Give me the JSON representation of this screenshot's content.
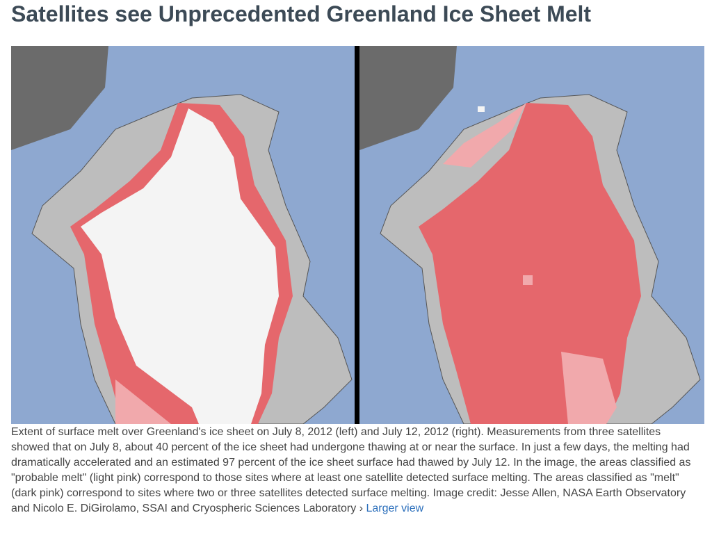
{
  "header": {
    "title": "Satellites see Unprecedented Greenland Ice Sheet Melt"
  },
  "caption": {
    "text": "Extent of surface melt over Greenland's ice sheet on July 8, 2012 (left) and July 12, 2012 (right). Measurements from three satellites showed that on July 8, about 40 percent of the ice sheet had undergone thawing at or near the surface. In just a few days, the melting had dramatically accelerated and an estimated 97 percent of the ice sheet surface had thawed by July 12. In the image, the areas classified as \"probable melt\" (light pink) correspond to those sites where at least one satellite detected surface melting. The areas classified as \"melt\" (dark pink) correspond to sites where two or three satellites detected surface melting. Image credit: Jesse Allen, NASA Earth Observatory and Nicolo E. DiGirolamo, SSAI and Cryospheric Sciences Laboratory",
    "separator": "›",
    "link": "Larger view"
  }
}
